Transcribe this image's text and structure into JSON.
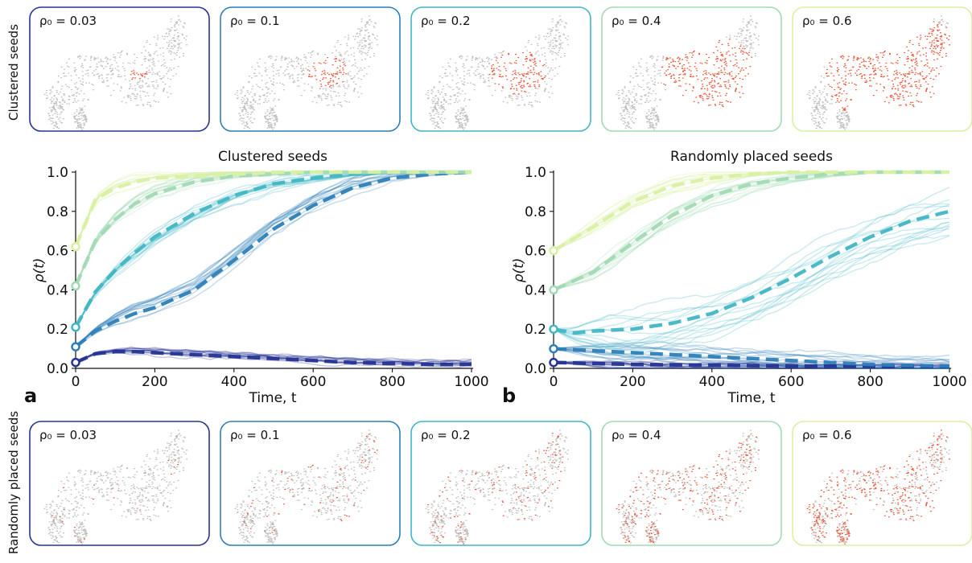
{
  "row_labels": {
    "top": "Clustered seeds",
    "bottom": "Randomly placed seeds"
  },
  "panel_labels": [
    "a",
    "b"
  ],
  "thumbnails": {
    "top": [
      {
        "label": "ρ₀ = 0.03",
        "color": "#253494",
        "seed_fraction": 0.03
      },
      {
        "label": "ρ₀ = 0.1",
        "color": "#2c7fb8",
        "seed_fraction": 0.1
      },
      {
        "label": "ρ₀ = 0.2",
        "color": "#41b6c4",
        "seed_fraction": 0.2
      },
      {
        "label": "ρ₀ = 0.4",
        "color": "#a1dab4",
        "seed_fraction": 0.4
      },
      {
        "label": "ρ₀ = 0.6",
        "color": "#d9f0a3",
        "seed_fraction": 0.6
      }
    ],
    "bottom": [
      {
        "label": "ρ₀ = 0.03",
        "color": "#253494",
        "seed_fraction": 0.03
      },
      {
        "label": "ρ₀ = 0.1",
        "color": "#2c7fb8",
        "seed_fraction": 0.1
      },
      {
        "label": "ρ₀ = 0.2",
        "color": "#41b6c4",
        "seed_fraction": 0.2
      },
      {
        "label": "ρ₀ = 0.4",
        "color": "#a1dab4",
        "seed_fraction": 0.4
      },
      {
        "label": "ρ₀ = 0.6",
        "color": "#d9f0a3",
        "seed_fraction": 0.6
      }
    ],
    "network_color": "#bdbdbd",
    "seed_color": "#e8553a"
  },
  "chart_data": [
    {
      "type": "line",
      "title": "Clustered seeds",
      "xlabel": "Time, t",
      "ylabel": "ρ(t)",
      "xlim": [
        0,
        1000
      ],
      "ylim": [
        0,
        1.0
      ],
      "xticks": [
        "0",
        "200",
        "400",
        "600",
        "800",
        "1000"
      ],
      "yticks": [
        "0.0",
        "0.2",
        "0.4",
        "0.6",
        "0.8",
        "1.0"
      ],
      "grid": false,
      "series": [
        {
          "color": "#253494",
          "x": [
            0,
            50,
            100,
            150,
            200,
            300,
            400,
            500,
            600,
            700,
            800,
            900,
            1000
          ],
          "y": [
            0.03,
            0.075,
            0.085,
            0.085,
            0.08,
            0.07,
            0.06,
            0.05,
            0.04,
            0.03,
            0.025,
            0.02,
            0.02
          ]
        },
        {
          "color": "#2c7fb8",
          "x": [
            0,
            50,
            100,
            150,
            200,
            300,
            400,
            500,
            600,
            700,
            800,
            900,
            1000
          ],
          "y": [
            0.11,
            0.19,
            0.24,
            0.28,
            0.31,
            0.4,
            0.55,
            0.71,
            0.83,
            0.92,
            0.97,
            0.99,
            1.0
          ]
        },
        {
          "color": "#41b6c4",
          "x": [
            0,
            50,
            100,
            150,
            200,
            300,
            400,
            500,
            600,
            700,
            800,
            900,
            1000
          ],
          "y": [
            0.21,
            0.39,
            0.5,
            0.59,
            0.67,
            0.79,
            0.88,
            0.94,
            0.97,
            0.99,
            1.0,
            1.0,
            1.0
          ]
        },
        {
          "color": "#a1dab4",
          "x": [
            0,
            50,
            100,
            150,
            200,
            300,
            400,
            500,
            600,
            700,
            800,
            900,
            1000
          ],
          "y": [
            0.42,
            0.65,
            0.76,
            0.84,
            0.89,
            0.95,
            0.98,
            0.99,
            1.0,
            1.0,
            1.0,
            1.0,
            1.0
          ]
        },
        {
          "color": "#d9f0a3",
          "x": [
            0,
            50,
            100,
            150,
            200,
            300,
            400,
            500,
            600,
            700,
            800,
            900,
            1000
          ],
          "y": [
            0.62,
            0.86,
            0.92,
            0.95,
            0.97,
            0.98,
            0.99,
            1.0,
            1.0,
            1.0,
            1.0,
            1.0,
            1.0
          ]
        }
      ]
    },
    {
      "type": "line",
      "title": "Randomly placed seeds",
      "xlabel": "Time, t",
      "ylabel": "ρ(t)",
      "xlim": [
        0,
        1000
      ],
      "ylim": [
        0,
        1.0
      ],
      "xticks": [
        "0",
        "200",
        "400",
        "600",
        "800",
        "1000"
      ],
      "yticks": [
        "0.0",
        "0.2",
        "0.4",
        "0.6",
        "0.8",
        "1.0"
      ],
      "grid": false,
      "series": [
        {
          "color": "#253494",
          "x": [
            0,
            100,
            200,
            300,
            400,
            500,
            600,
            700,
            800,
            900,
            1000
          ],
          "y": [
            0.03,
            0.025,
            0.02,
            0.018,
            0.016,
            0.014,
            0.012,
            0.011,
            0.01,
            0.01,
            0.01
          ]
        },
        {
          "color": "#2c7fb8",
          "x": [
            0,
            100,
            200,
            300,
            400,
            500,
            600,
            700,
            800,
            900,
            1000
          ],
          "y": [
            0.1,
            0.09,
            0.08,
            0.07,
            0.06,
            0.05,
            0.04,
            0.03,
            0.02,
            0.015,
            0.012
          ]
        },
        {
          "color": "#41b6c4",
          "x": [
            0,
            50,
            100,
            200,
            300,
            400,
            500,
            600,
            700,
            800,
            900,
            1000
          ],
          "y": [
            0.2,
            0.18,
            0.19,
            0.2,
            0.23,
            0.28,
            0.36,
            0.46,
            0.57,
            0.67,
            0.75,
            0.8
          ]
        },
        {
          "color": "#a1dab4",
          "x": [
            0,
            100,
            200,
            300,
            400,
            500,
            600,
            700,
            800,
            900,
            1000
          ],
          "y": [
            0.4,
            0.49,
            0.64,
            0.78,
            0.88,
            0.94,
            0.97,
            0.99,
            1.0,
            1.0,
            1.0
          ]
        },
        {
          "color": "#d9f0a3",
          "x": [
            0,
            100,
            200,
            300,
            400,
            500,
            600,
            700,
            800,
            900,
            1000
          ],
          "y": [
            0.6,
            0.72,
            0.85,
            0.93,
            0.97,
            0.99,
            1.0,
            1.0,
            1.0,
            1.0,
            1.0
          ]
        }
      ]
    }
  ]
}
